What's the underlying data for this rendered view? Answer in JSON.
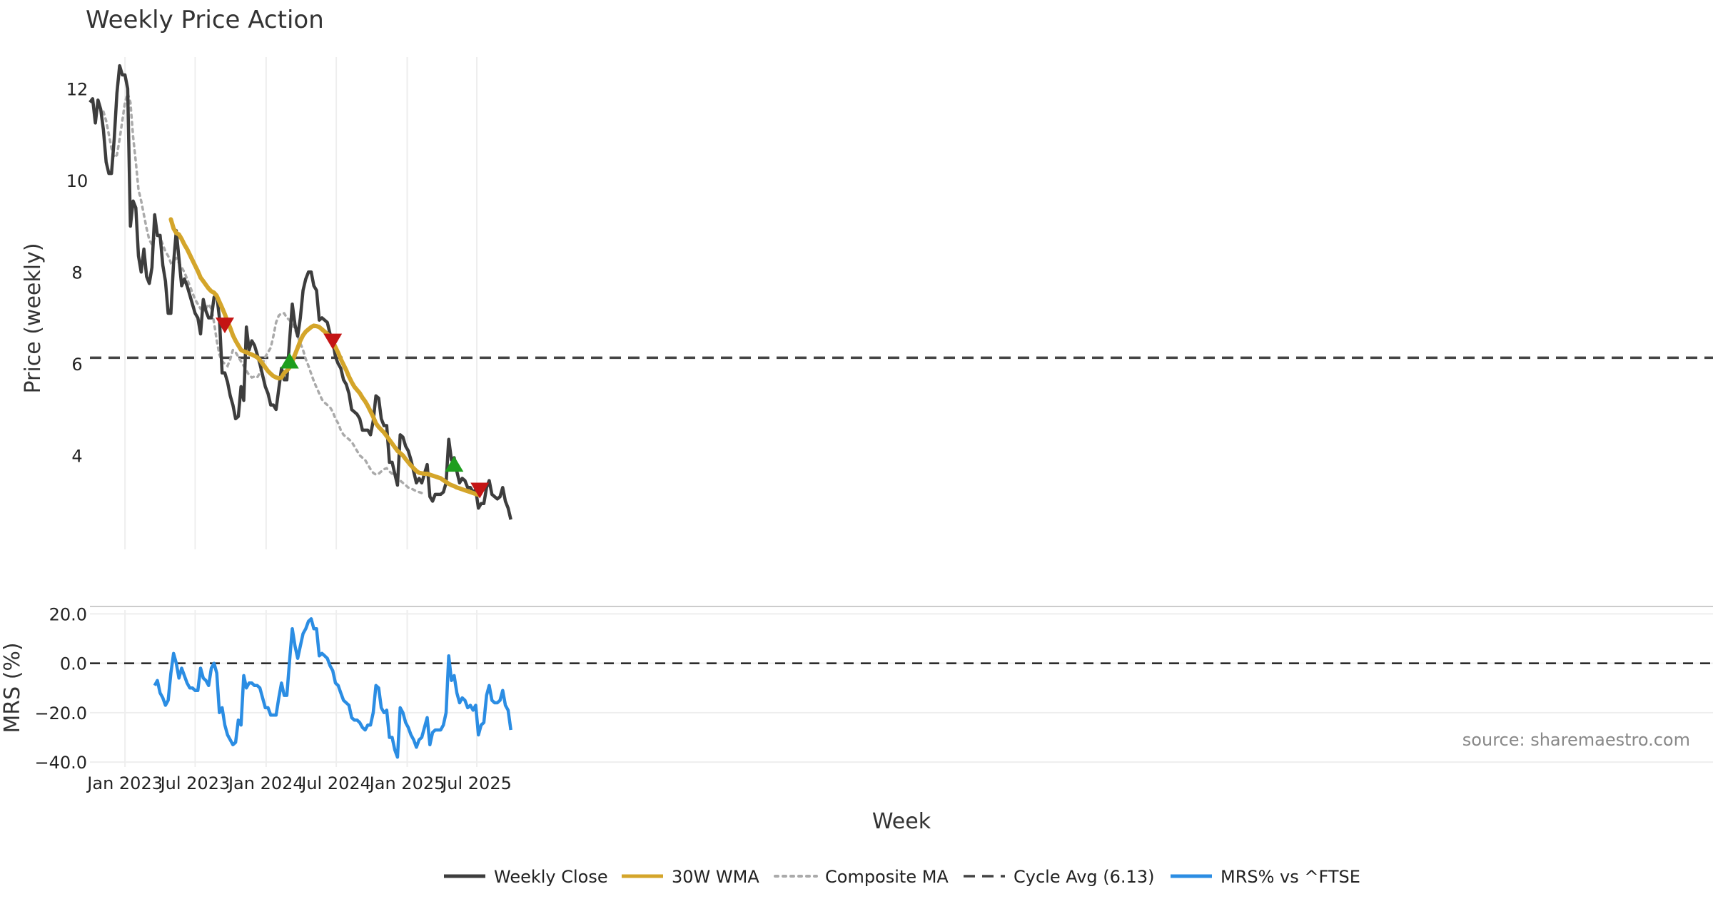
{
  "chart_data": {
    "type": "line",
    "title": "Weekly Price Action",
    "xlabel": "Week",
    "source": "source: sharemaestro.com",
    "x_ticks": [
      {
        "label": "Jan 2023",
        "week": 13
      },
      {
        "label": "Jul 2023",
        "week": 39
      },
      {
        "label": "Jan 2024",
        "week": 65.3
      },
      {
        "label": "Jul 2024",
        "week": 91.3
      },
      {
        "label": "Jan 2025",
        "week": 117.6
      },
      {
        "label": "Jul 2025",
        "week": 143.4
      }
    ],
    "price_panel": {
      "ylabel": "Price (weekly)",
      "ylim": [
        1.95,
        13.0
      ],
      "yticks": [
        4,
        6,
        8,
        10,
        12
      ],
      "cycle_avg": 6.13,
      "weekly_close": [
        11.7,
        11.78,
        11.25,
        11.75,
        11.55,
        11.1,
        10.4,
        10.15,
        10.15,
        10.9,
        11.9,
        12.5,
        12.3,
        12.3,
        12.0,
        9.0,
        9.55,
        9.4,
        8.35,
        8.0,
        8.5,
        7.9,
        7.75,
        8.1,
        9.25,
        8.8,
        8.8,
        8.15,
        7.8,
        7.1,
        7.1,
        8.2,
        8.9,
        8.3,
        7.7,
        7.85,
        7.7,
        7.5,
        7.3,
        7.1,
        7.0,
        6.65,
        7.4,
        7.15,
        7.0,
        7.0,
        7.45,
        7.5,
        7.0,
        5.8,
        5.8,
        5.6,
        5.3,
        5.1,
        4.8,
        4.85,
        5.5,
        5.2,
        6.8,
        6.3,
        6.5,
        6.4,
        6.2,
        6.0,
        5.75,
        5.5,
        5.35,
        5.1,
        5.1,
        5.0,
        5.45,
        5.9,
        5.65,
        5.65,
        6.5,
        7.3,
        6.85,
        6.6,
        7.0,
        7.6,
        7.85,
        8.0,
        8.0,
        7.7,
        7.6,
        6.95,
        7.0,
        6.95,
        6.9,
        6.65,
        6.5,
        6.15,
        6.0,
        5.9,
        5.65,
        5.55,
        5.35,
        5.0,
        4.95,
        4.9,
        4.8,
        4.55,
        4.55,
        4.55,
        4.45,
        4.75,
        5.3,
        5.25,
        4.8,
        4.65,
        4.65,
        3.85,
        3.85,
        3.6,
        3.35,
        4.45,
        4.4,
        4.2,
        4.1,
        3.9,
        3.65,
        3.4,
        3.5,
        3.4,
        3.6,
        3.8,
        3.1,
        3.0,
        3.15,
        3.15,
        3.15,
        3.2,
        3.4,
        4.35,
        3.9,
        3.95,
        3.65,
        3.4,
        3.5,
        3.45,
        3.3,
        3.3,
        3.2,
        3.25,
        2.85,
        2.95,
        2.95,
        3.3,
        3.45,
        3.15,
        3.1,
        3.05,
        3.1,
        3.3,
        3.0,
        2.85,
        2.6
      ],
      "wma_30w": [
        9.15,
        8.95,
        8.85,
        8.82,
        8.72,
        8.6,
        8.5,
        8.38,
        8.26,
        8.14,
        8.02,
        7.88,
        7.8,
        7.72,
        7.64,
        7.58,
        7.55,
        7.48,
        7.35,
        7.22,
        7.08,
        6.92,
        6.78,
        6.62,
        6.5,
        6.4,
        6.3,
        6.27,
        6.25,
        6.22,
        6.2,
        6.17,
        6.14,
        6.08,
        6.0,
        5.92,
        5.84,
        5.78,
        5.73,
        5.7,
        5.68,
        5.7,
        5.8,
        5.85,
        5.92,
        6.05,
        6.2,
        6.35,
        6.5,
        6.62,
        6.7,
        6.75,
        6.8,
        6.83,
        6.82,
        6.8,
        6.75,
        6.7,
        6.65,
        6.58,
        6.48,
        6.36,
        6.24,
        6.1,
        5.98,
        5.86,
        5.72,
        5.6,
        5.5,
        5.43,
        5.36,
        5.26,
        5.18,
        5.08,
        4.96,
        4.84,
        4.7,
        4.62,
        4.56,
        4.5,
        4.42,
        4.34,
        4.26,
        4.18,
        4.1,
        4.05,
        4.0,
        3.92,
        3.85,
        3.78,
        3.72,
        3.66,
        3.62,
        3.61,
        3.6,
        3.6,
        3.58,
        3.56,
        3.54,
        3.52,
        3.5,
        3.46,
        3.42,
        3.38,
        3.35,
        3.33,
        3.3,
        3.28,
        3.26,
        3.24,
        3.22,
        3.2,
        3.18,
        3.16,
        3.14
      ],
      "wma_start_week": 30,
      "composite_ma": [
        11.5,
        11.3,
        11.0,
        10.7,
        10.5,
        10.55,
        10.9,
        11.3,
        11.7,
        11.9,
        11.7,
        10.95,
        10.4,
        9.8,
        9.55,
        9.25,
        8.95,
        8.7,
        8.6,
        8.75,
        8.8,
        8.75,
        8.6,
        8.45,
        8.35,
        8.2,
        8.25,
        8.3,
        8.2,
        8.1,
        8.0,
        7.85,
        7.7,
        7.55,
        7.4,
        7.3,
        7.2,
        7.2,
        7.2,
        7.3,
        7.2,
        6.9,
        6.5,
        6.2,
        6.05,
        6.0,
        5.95,
        6.1,
        6.3,
        6.25,
        6.15,
        6.05,
        5.95,
        5.85,
        5.75,
        5.7,
        5.72,
        5.7,
        5.8,
        6.0,
        6.15,
        6.25,
        6.35,
        6.6,
        6.9,
        7.05,
        7.1,
        7.1,
        7.0,
        6.95,
        6.85,
        6.75,
        6.6,
        6.45,
        6.3,
        6.1,
        5.95,
        5.78,
        5.62,
        5.48,
        5.35,
        5.22,
        5.15,
        5.1,
        5.05,
        4.95,
        4.8,
        4.7,
        4.55,
        4.45,
        4.4,
        4.35,
        4.3,
        4.2,
        4.1,
        4.0,
        3.95,
        3.9,
        3.8,
        3.7,
        3.62,
        3.58,
        3.6,
        3.65,
        3.7,
        3.72,
        3.65,
        3.6,
        3.55,
        3.5,
        3.45,
        3.4,
        3.35,
        3.3,
        3.28,
        3.25,
        3.22,
        3.2,
        3.18,
        3.15
      ],
      "composite_start_week": 5,
      "buy_signals": [
        {
          "week": 74,
          "price": 6.05
        },
        {
          "week": 135,
          "price": 3.8
        }
      ],
      "sell_signals": [
        {
          "week": 50,
          "price": 6.85
        },
        {
          "week": 90,
          "price": 6.5
        },
        {
          "week": 144.5,
          "price": 3.25
        }
      ]
    },
    "mrs_panel": {
      "ylabel": "MRS (%)",
      "ylim": [
        -42,
        23
      ],
      "yticks": [
        20.0,
        0.0,
        -20.0,
        -40.0
      ],
      "ytick_labels": [
        "20.0",
        "0.0",
        "−20.0",
        "−40.0"
      ],
      "mrs_start_week": 24,
      "values": [
        -9,
        -7,
        -12,
        -14,
        -17,
        -15,
        -4,
        4,
        0,
        -6,
        -2,
        -5,
        -8,
        -10,
        -10,
        -11,
        -11,
        -2,
        -6,
        -7,
        -9,
        -2,
        0,
        -4,
        -20,
        -18,
        -25,
        -29,
        -31,
        -33,
        -32,
        -23,
        -25,
        -5,
        -10,
        -8,
        -8,
        -9,
        -9,
        -10,
        -14,
        -18,
        -18,
        -21,
        -21,
        -21,
        -14,
        -8,
        -13,
        -13,
        1,
        14,
        7,
        2,
        7,
        12,
        14,
        17,
        18,
        14,
        14,
        3,
        4,
        3,
        2,
        -1,
        -3,
        -8,
        -9,
        -12,
        -15,
        -16,
        -17,
        -22,
        -23,
        -23,
        -24,
        -26,
        -27,
        -25,
        -25,
        -20,
        -9,
        -10,
        -18,
        -20,
        -19,
        -30,
        -30,
        -35,
        -38,
        -18,
        -20,
        -24,
        -26,
        -29,
        -31,
        -34,
        -31,
        -30,
        -26,
        -22,
        -33,
        -28,
        -27,
        -27,
        -27,
        -25,
        -20,
        3,
        -7,
        -5,
        -12,
        -16,
        -14,
        -15,
        -18,
        -17,
        -19,
        -17,
        -29,
        -25,
        -24,
        -13,
        -9,
        -15,
        -16,
        -16,
        -15,
        -11,
        -17,
        -19,
        -27
      ]
    },
    "legend": [
      {
        "label": "Weekly Close",
        "color": "#3d3d3d",
        "style": "solid"
      },
      {
        "label": "30W WMA",
        "color": "#d4a52a",
        "style": "solid"
      },
      {
        "label": "Composite MA",
        "color": "#aaaaaa",
        "style": "dotted"
      },
      {
        "label": "Cycle Avg (6.13)",
        "color": "#444444",
        "style": "dashed"
      },
      {
        "label": "MRS% vs ^FTSE",
        "color": "#2b8de3",
        "style": "solid"
      }
    ],
    "colors": {
      "close": "#3d3d3d",
      "wma": "#d4a52a",
      "composite": "#aaaaaa",
      "cycle": "#444444",
      "mrs": "#2b8de3",
      "buy": "#1e9e1e",
      "sell": "#c41414",
      "grid": "#eeeeee"
    }
  }
}
